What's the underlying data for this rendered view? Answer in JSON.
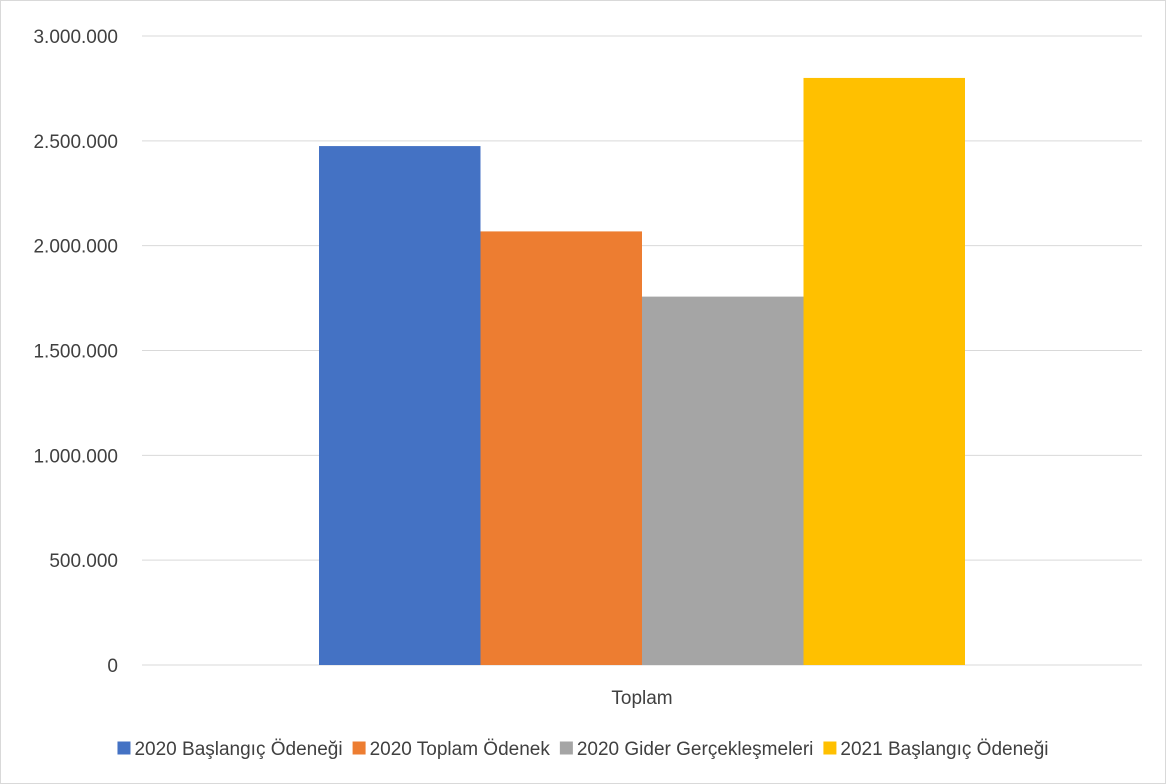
{
  "chart_data": {
    "type": "bar",
    "categories": [
      "Toplam"
    ],
    "series": [
      {
        "name": "2020 Başlangıç Ödeneği",
        "values": [
          2475000
        ],
        "color": "#4472C4"
      },
      {
        "name": "2020 Toplam Ödenek",
        "values": [
          2068000
        ],
        "color": "#ED7D31"
      },
      {
        "name": "2020 Gider Gerçekleşmeleri",
        "values": [
          1757000
        ],
        "color": "#A5A5A5"
      },
      {
        "name": "2021 Başlangıç Ödeneği",
        "values": [
          2800000
        ],
        "color": "#FFC000"
      }
    ],
    "yticks": [
      "0",
      "500.000",
      "1.000.000",
      "1.500.000",
      "2.000.000",
      "2.500.000",
      "3.000.000"
    ],
    "ylim": [
      0,
      3000000
    ],
    "grid": true,
    "legend_position": "bottom"
  }
}
